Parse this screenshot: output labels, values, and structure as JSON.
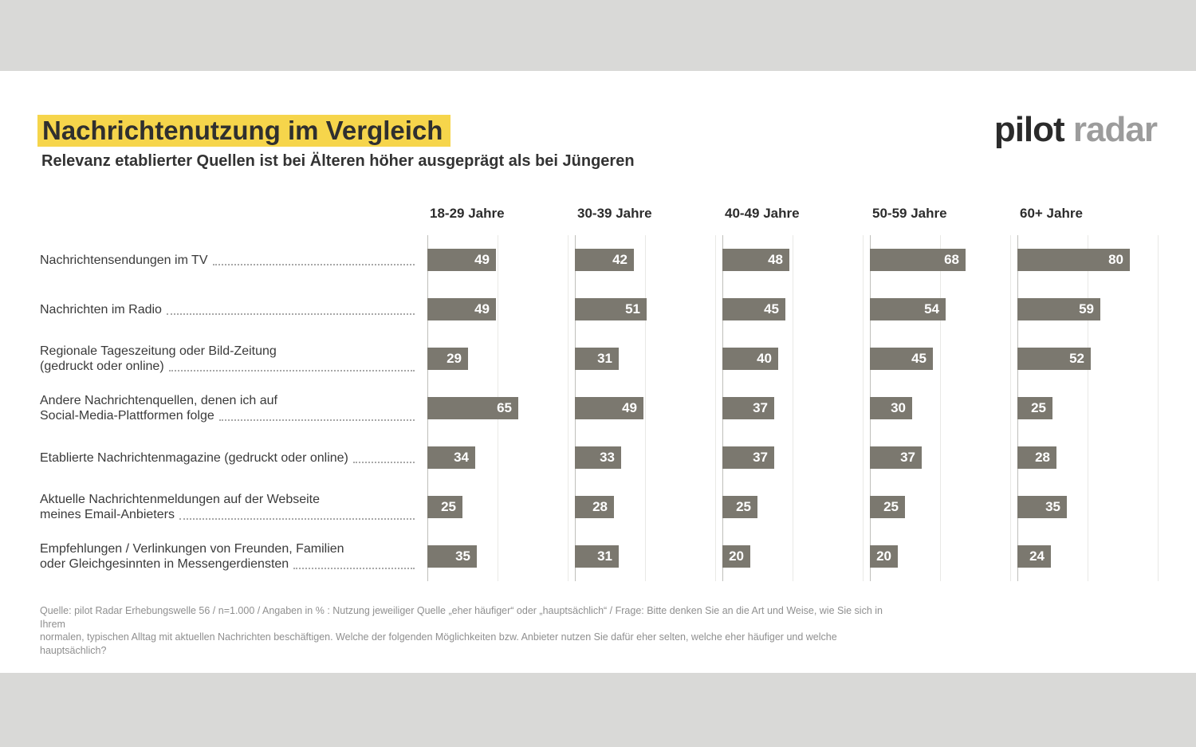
{
  "page": {
    "title": "Nachrichtenutzung im Vergleich",
    "subtitle": "Relevanz etablierter Quellen ist bei Älteren höher ausgeprägt als bei Jüngeren",
    "logo": {
      "primary": "pilot",
      "secondary": "radar"
    },
    "footer_lines": [
      "Quelle: pilot Radar Erhebungswelle 56 / n=1.000 / Angaben in % : Nutzung jeweiliger Quelle „eher häufiger“ oder „hauptsächlich“ / Frage: Bitte denken Sie an die Art und Weise, wie Sie sich in Ihrem",
      "normalen, typischen Alltag mit aktuellen Nachrichten beschäftigen. Welche der folgenden Möglichkeiten bzw. Anbieter nutzen Sie dafür eher selten, welche eher häufiger und welche hauptsächlich?"
    ]
  },
  "colors": {
    "title_highlight": "#f6d54b",
    "bar": "#7b786f",
    "value_label": "#ffffff",
    "band_gray": "#d9d9d7",
    "logo_primary": "#2b2b2b",
    "logo_secondary": "#9c9c9c"
  },
  "chart_data": {
    "type": "bar",
    "orientation": "horizontal",
    "unit": "%",
    "title": "Nachrichtenutzung im Vergleich",
    "subtitle": "Relevanz etablierter Quellen ist bei Älteren höher ausgeprägt als bei Jüngeren",
    "xlim": [
      0,
      100
    ],
    "gridlines_at": [
      0,
      50,
      100
    ],
    "grid": true,
    "legend": false,
    "bar_color": "#7b786f",
    "columns": [
      "18-29 Jahre",
      "30-39 Jahre",
      "40-49 Jahre",
      "50-59 Jahre",
      "60+ Jahre"
    ],
    "rows": [
      {
        "label_lines": [
          "Nachrichtensendungen im TV"
        ],
        "values": [
          49,
          42,
          48,
          68,
          80
        ]
      },
      {
        "label_lines": [
          "Nachrichten im Radio"
        ],
        "values": [
          49,
          51,
          45,
          54,
          59
        ]
      },
      {
        "label_lines": [
          "Regionale Tageszeitung oder Bild-Zeitung",
          "(gedruckt oder online)"
        ],
        "values": [
          29,
          31,
          40,
          45,
          52
        ]
      },
      {
        "label_lines": [
          "Andere Nachrichtenquellen, denen ich auf",
          "Social-Media-Plattformen folge"
        ],
        "values": [
          65,
          49,
          37,
          30,
          25
        ]
      },
      {
        "label_lines": [
          "Etablierte Nachrichtenmagazine (gedruckt oder online)"
        ],
        "values": [
          34,
          33,
          37,
          37,
          28
        ]
      },
      {
        "label_lines": [
          "Aktuelle Nachrichtenmeldungen auf der Webseite",
          "meines Email-Anbieters"
        ],
        "values": [
          25,
          28,
          25,
          25,
          35
        ]
      },
      {
        "label_lines": [
          "Empfehlungen / Verlinkungen von Freunden, Familien",
          "oder Gleichgesinnten in Messengerdiensten"
        ],
        "values": [
          35,
          31,
          20,
          20,
          24
        ]
      }
    ]
  }
}
